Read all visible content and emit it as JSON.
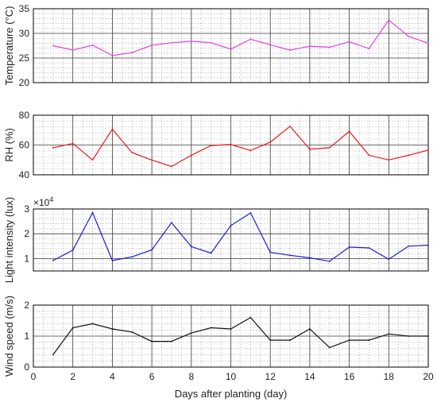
{
  "chart_data": [
    {
      "type": "line",
      "ylabel": "Temperature (°C)",
      "ylim": [
        20,
        35
      ],
      "yticks": [
        20,
        25,
        30,
        35
      ],
      "color": "#e040e0",
      "grid": true,
      "series": [
        {
          "x": [
            1,
            2,
            3,
            4,
            5,
            6,
            7,
            8,
            9,
            10,
            11,
            12,
            13,
            14,
            15,
            16,
            17,
            18,
            19,
            20
          ],
          "values": [
            27.5,
            26.6,
            27.6,
            25.5,
            26.1,
            27.6,
            28.1,
            28.4,
            28.1,
            26.8,
            28.8,
            27.7,
            26.6,
            27.4,
            27.2,
            28.3,
            26.9,
            32.7,
            29.4,
            28.0
          ]
        }
      ]
    },
    {
      "type": "line",
      "ylabel": "RH (%)",
      "ylim": [
        40,
        80
      ],
      "yticks": [
        40,
        60,
        80
      ],
      "color": "#e8161b",
      "grid": true,
      "series": [
        {
          "x": [
            1,
            2,
            3,
            4,
            5,
            6,
            7,
            8,
            9,
            10,
            11,
            12,
            13,
            14,
            15,
            16,
            17,
            18,
            19,
            20
          ],
          "values": [
            58.2,
            61.0,
            50.0,
            70.6,
            54.9,
            49.9,
            45.6,
            53.1,
            59.7,
            60.3,
            56.3,
            62.0,
            72.6,
            57.1,
            58.2,
            69.1,
            53.1,
            50.0,
            53.1,
            56.6
          ]
        }
      ]
    },
    {
      "type": "line",
      "ylabel": "Light intensity (lux)",
      "multiplier": "×10",
      "multiplier_exp": "4",
      "ylim": [
        0.5,
        3
      ],
      "yticks": [
        1,
        2,
        3
      ],
      "color": "#1b1bd6",
      "grid": true,
      "series": [
        {
          "x": [
            1,
            2,
            3,
            4,
            5,
            6,
            7,
            8,
            9,
            10,
            11,
            12,
            13,
            14,
            15,
            16,
            17,
            18,
            19,
            20
          ],
          "values": [
            0.92,
            1.34,
            2.85,
            0.92,
            1.07,
            1.35,
            2.45,
            1.48,
            1.22,
            2.33,
            2.84,
            1.25,
            1.13,
            1.03,
            0.89,
            1.46,
            1.43,
            0.97,
            1.5,
            1.54
          ]
        }
      ]
    },
    {
      "type": "line",
      "ylabel": "Wind speed (m/s)",
      "xlabel": "Days after planting (day)",
      "ylim": [
        0,
        2
      ],
      "yticks": [
        0,
        1,
        2
      ],
      "xlim": [
        0,
        20
      ],
      "xticks": [
        0,
        2,
        4,
        6,
        8,
        10,
        12,
        14,
        16,
        18,
        20
      ],
      "color": "#111111",
      "grid": true,
      "series": [
        {
          "x": [
            1,
            2,
            3,
            4,
            5,
            6,
            7,
            8,
            9,
            10,
            11,
            12,
            13,
            14,
            15,
            16,
            17,
            18,
            19,
            20
          ],
          "values": [
            0.4,
            1.27,
            1.4,
            1.23,
            1.13,
            0.83,
            0.83,
            1.1,
            1.27,
            1.23,
            1.6,
            0.87,
            0.87,
            1.23,
            0.63,
            0.87,
            0.87,
            1.07,
            1.0,
            1.0
          ]
        }
      ]
    }
  ]
}
